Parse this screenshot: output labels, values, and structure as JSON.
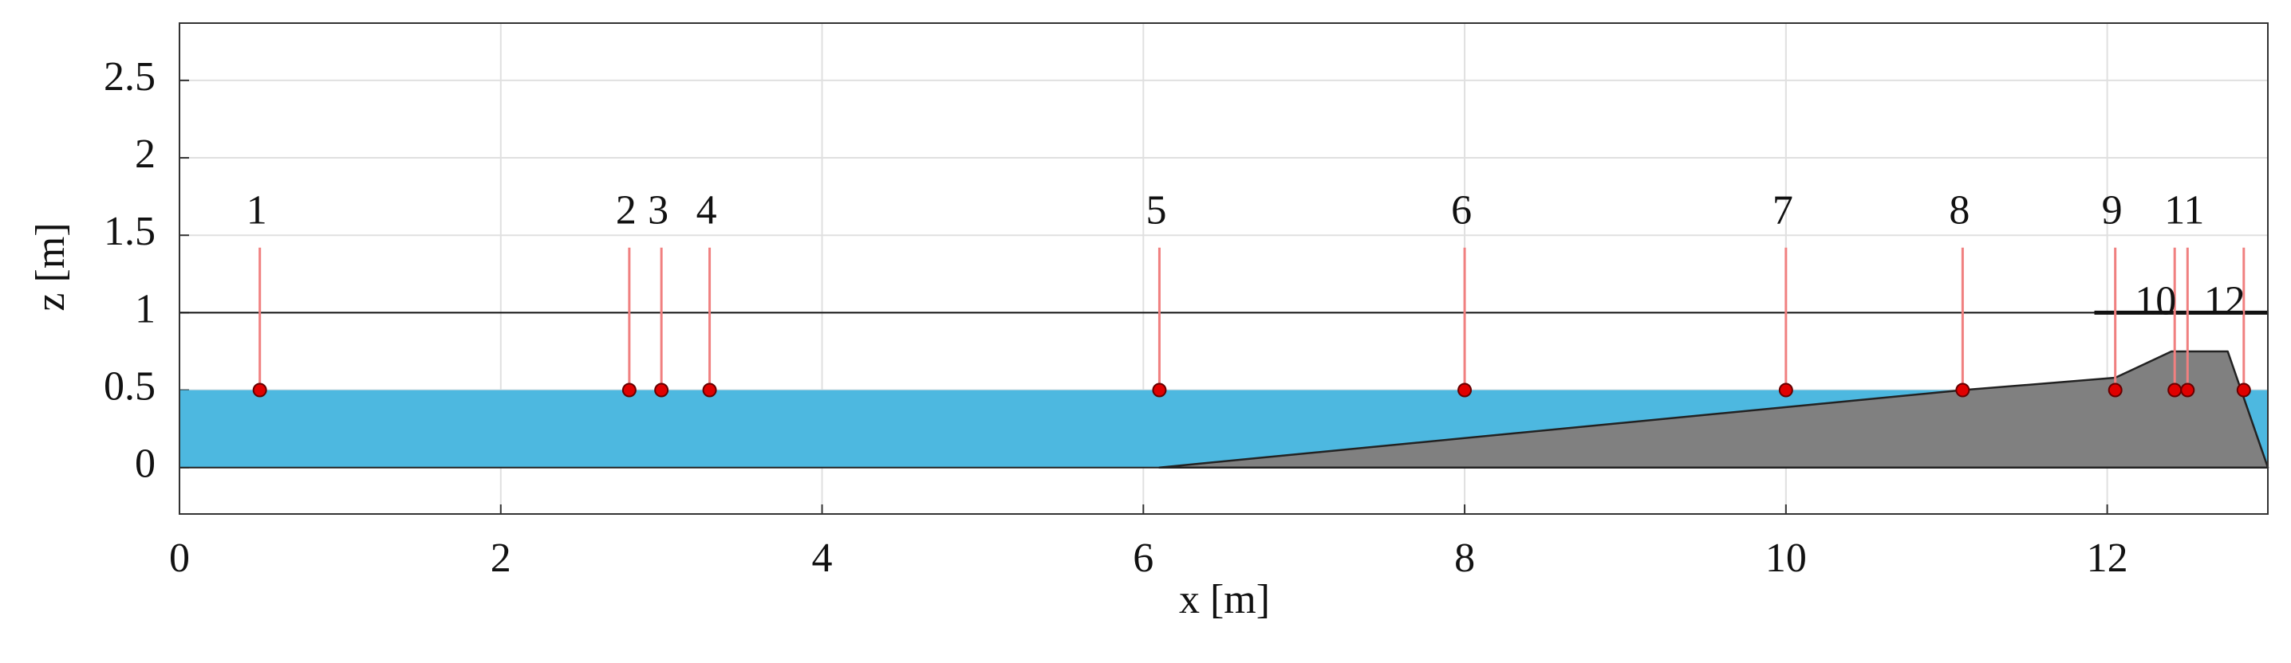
{
  "chart_data": {
    "type": "profile",
    "xlabel": "x [m]",
    "ylabel": "z [m]",
    "xlim": [
      0,
      13
    ],
    "ylim": [
      -0.3,
      2.87
    ],
    "xticks": [
      0,
      2,
      4,
      6,
      8,
      10,
      12
    ],
    "yticks": [
      0,
      0.5,
      1,
      1.5,
      2,
      2.5
    ],
    "grid": true,
    "water": {
      "color": "#4db8e0",
      "x": [
        0,
        13
      ],
      "z": [
        0,
        0.5
      ]
    },
    "structure": {
      "color": "#808080",
      "x": [
        6.1,
        11.1,
        12.05,
        12.4,
        12.75,
        13
      ],
      "z": [
        0,
        0.5,
        0.58,
        0.75,
        0.75,
        0
      ]
    },
    "wall_lines": [
      {
        "x": [
          0,
          13
        ],
        "z": [
          1,
          1
        ]
      },
      {
        "x": [
          11.92,
          13
        ],
        "z": [
          1,
          1
        ]
      }
    ],
    "gauges": {
      "color": "#e00000",
      "line_color": "#f08080",
      "labels": [
        "1",
        "2",
        "3",
        "4",
        "5",
        "6",
        "7",
        "8",
        "9",
        "10",
        "11",
        "12"
      ],
      "x": [
        0.5,
        2.8,
        3.0,
        3.3,
        6.1,
        8.0,
        10.0,
        11.1,
        12.05,
        12.42,
        12.5,
        12.85
      ],
      "z": [
        0.5,
        0.5,
        0.5,
        0.5,
        0.5,
        0.5,
        0.5,
        0.5,
        0.5,
        0.5,
        0.5,
        0.5
      ],
      "top": 1.42
    }
  }
}
